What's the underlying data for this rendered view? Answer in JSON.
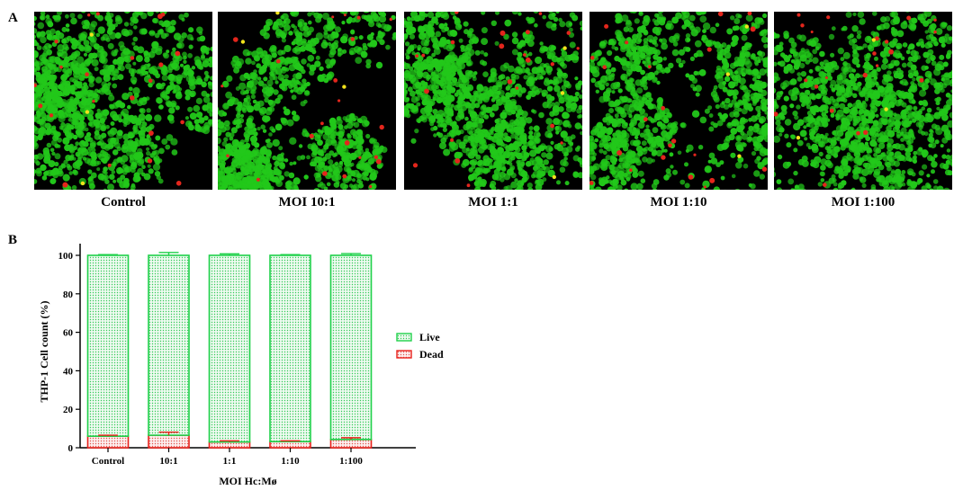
{
  "panel_a": {
    "letter": "A",
    "images": [
      {
        "label": "Control"
      },
      {
        "label": "MOI 10:1"
      },
      {
        "label": "MOI 1:1"
      },
      {
        "label": "MOI 1:10"
      },
      {
        "label": "MOI 1:100"
      }
    ],
    "colors": {
      "live_cell": "#22c81a",
      "dead_cell": "#e3261c",
      "background": "#000000"
    }
  },
  "panel_b": {
    "letter": "B"
  },
  "chart_data": {
    "type": "bar",
    "stacked": true,
    "categories": [
      "Control",
      "10:1",
      "1:1",
      "1:10",
      "1:100"
    ],
    "xlabel": "MOI Hc:Mø",
    "ylabel": "THP-1 Cell count (%)",
    "ylim": [
      0,
      100
    ],
    "yticks": [
      0,
      20,
      40,
      60,
      80,
      100
    ],
    "series": [
      {
        "name": "Live",
        "color": "#1fd14a",
        "values": [
          94,
          93.5,
          97,
          96.8,
          95.7
        ],
        "error": [
          0.4,
          1.5,
          0.8,
          0.4,
          0.9
        ]
      },
      {
        "name": "Dead",
        "color": "#e8201a",
        "values": [
          6,
          6.5,
          3,
          3.2,
          4.3
        ],
        "error": [
          0.5,
          1.6,
          0.6,
          0.4,
          0.9
        ]
      }
    ],
    "legend": {
      "placement": "right"
    },
    "grid": false
  }
}
